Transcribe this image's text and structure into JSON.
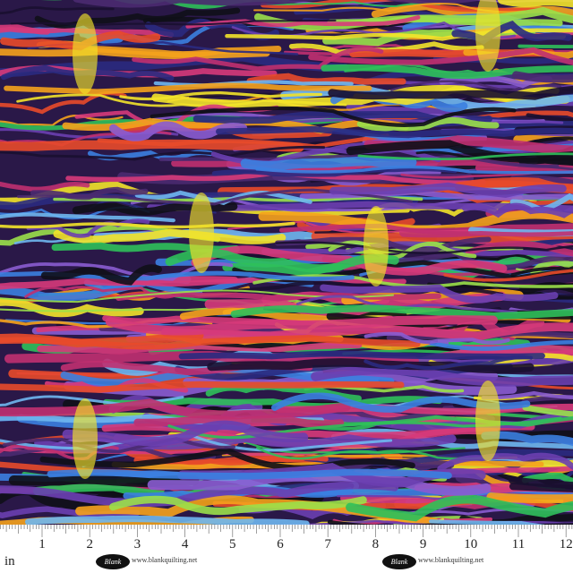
{
  "image": {
    "subject": "multicolor wavy wood-grain style quilting fabric print",
    "palette": [
      "#1a1030",
      "#6a3fb0",
      "#8a5cd0",
      "#3b7fe0",
      "#6fb7f0",
      "#2fc05a",
      "#9ae04a",
      "#f2e32a",
      "#f5a21c",
      "#e84a2a",
      "#d63a7a",
      "#c03070",
      "#2a2a80",
      "#101018",
      "#4a2a70"
    ]
  },
  "ruler": {
    "unit": "in",
    "numbers": [
      "1",
      "2",
      "3",
      "4",
      "5",
      "6",
      "7",
      "8",
      "9",
      "10",
      "11",
      "12"
    ],
    "logos": [
      {
        "brand": "Blank",
        "url": "www.blankquilting.net"
      },
      {
        "brand": "Blank",
        "url": "www.blankquilting.net"
      }
    ]
  }
}
